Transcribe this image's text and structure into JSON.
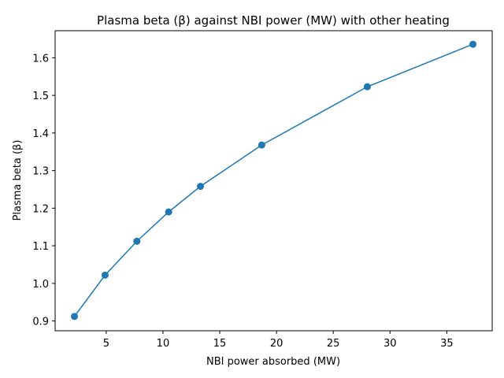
{
  "chart_data": {
    "type": "line",
    "title": "Plasma beta (β) against NBI power (MW) with other heating",
    "xlabel": "NBI power absorbed (MW)",
    "ylabel": "Plasma beta (β)",
    "x": [
      2.2,
      4.9,
      7.7,
      10.5,
      13.3,
      18.7,
      28.0,
      37.3
    ],
    "series": [
      {
        "values": [
          0.912,
          1.022,
          1.112,
          1.19,
          1.258,
          1.368,
          1.523,
          1.636
        ],
        "color": "#1f77b4",
        "marker": "circle"
      }
    ],
    "xlim": [
      0.5,
      39.0
    ],
    "ylim": [
      0.874,
      1.672
    ],
    "xticks": [
      5,
      10,
      15,
      20,
      25,
      30,
      35
    ],
    "yticks": [
      0.9,
      1.0,
      1.1,
      1.2,
      1.3,
      1.4,
      1.5,
      1.6
    ],
    "grid": false,
    "legend": "none"
  }
}
